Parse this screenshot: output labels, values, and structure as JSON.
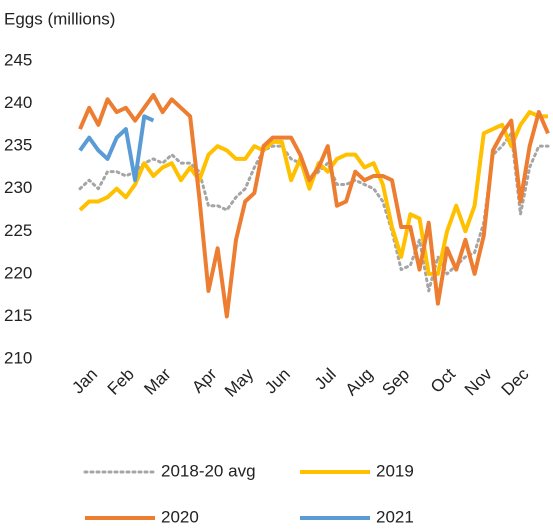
{
  "chart_data": {
    "type": "line",
    "title": "Eggs (millions)",
    "categories": [
      null,
      "Jan",
      null,
      null,
      null,
      "Feb",
      null,
      null,
      null,
      "Mar",
      null,
      null,
      null,
      null,
      "Apr",
      null,
      null,
      null,
      "May",
      null,
      null,
      null,
      "Jun",
      null,
      null,
      null,
      null,
      "Jul",
      null,
      null,
      null,
      "Aug",
      null,
      null,
      null,
      "Sep",
      null,
      null,
      null,
      null,
      "Oct",
      null,
      null,
      null,
      "Nov",
      null,
      null,
      null,
      "Dec",
      null,
      null,
      null
    ],
    "series": [
      {
        "name": "2018-20 avg",
        "color": "#a5a5a5",
        "dashed": true,
        "values": [
          230,
          231,
          230,
          232,
          232,
          231.5,
          232,
          233,
          233.5,
          233,
          234,
          233,
          233,
          232,
          228,
          228,
          227.5,
          229,
          230,
          232.5,
          234.5,
          235,
          235,
          233.5,
          233,
          231,
          232,
          233,
          230.5,
          230.5,
          231,
          230.5,
          230,
          228.5,
          225,
          220.5,
          221,
          224,
          218,
          222,
          220,
          221,
          222,
          222.5,
          226,
          234,
          235,
          236.5,
          227,
          232.5,
          235,
          235
        ]
      },
      {
        "name": "2019",
        "color": "#ffc000",
        "values": [
          227.5,
          228.5,
          228.5,
          229,
          230,
          229,
          230.5,
          233,
          231.5,
          232.5,
          233,
          231,
          232.5,
          231,
          234,
          235,
          234.5,
          233.5,
          233.5,
          235,
          234.5,
          235.5,
          235.5,
          231,
          233.5,
          230,
          233,
          232,
          233.5,
          234,
          234,
          232.5,
          233,
          230.5,
          225.5,
          222,
          227,
          226.5,
          220,
          220,
          225,
          228,
          225,
          228,
          236.5,
          237,
          237.5,
          235,
          237.5,
          239,
          238.5,
          238.5
        ]
      },
      {
        "name": "2020",
        "color": "#ed7d31",
        "values": [
          237,
          239.5,
          237.5,
          240.5,
          239,
          239.5,
          238,
          239.5,
          241,
          239,
          240.5,
          239.5,
          238.5,
          229,
          218,
          223,
          215,
          224,
          228.5,
          229.5,
          235,
          236,
          236,
          236,
          234,
          231,
          232.5,
          235,
          228,
          228.5,
          232,
          231,
          231.5,
          231.5,
          231,
          225.5,
          225.5,
          220.5,
          226,
          216.5,
          223,
          220.5,
          224,
          220,
          224.5,
          234.5,
          236.5,
          238,
          228.5,
          235,
          239,
          236.5
        ]
      },
      {
        "name": "2021",
        "color": "#5b9bd5",
        "values": [
          234.5,
          236,
          234.5,
          233.5,
          236,
          237,
          231,
          238.5,
          238,
          null,
          null,
          null,
          null,
          null,
          null,
          null,
          null,
          null,
          null,
          null,
          null,
          null,
          null,
          null,
          null,
          null,
          null,
          null,
          null,
          null,
          null,
          null,
          null,
          null,
          null,
          null,
          null,
          null,
          null,
          null,
          null,
          null,
          null,
          null,
          null,
          null,
          null,
          null,
          null,
          null,
          null,
          null
        ]
      }
    ],
    "ylim": [
      210,
      245
    ],
    "yticks": [
      210,
      215,
      220,
      225,
      230,
      235,
      240,
      245
    ],
    "grid": false
  }
}
